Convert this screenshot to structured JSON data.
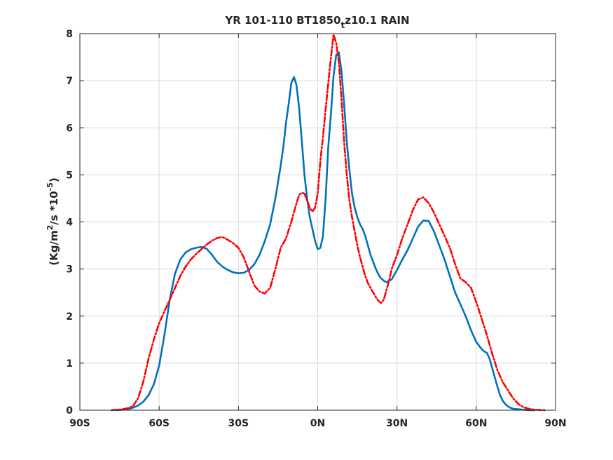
{
  "chart_data": {
    "type": "line",
    "title": "YR 101-110 BT1850",
    "title_subscript": "t",
    "title_suffix": "z10.1 RAIN",
    "ylabel": {
      "prefix": "(Kg/m",
      "sup1": "2",
      "mid": "/s   *10",
      "sup2": "-5",
      "suffix": ")"
    },
    "xlim": [
      -90,
      90
    ],
    "ylim": [
      0,
      8
    ],
    "grid": true,
    "x_ticks": [
      {
        "value": -90,
        "label": "90S"
      },
      {
        "value": -60,
        "label": "60S"
      },
      {
        "value": -30,
        "label": "30S"
      },
      {
        "value": 0,
        "label": "0N"
      },
      {
        "value": 30,
        "label": "30N"
      },
      {
        "value": 60,
        "label": "60N"
      },
      {
        "value": 90,
        "label": "90N"
      }
    ],
    "y_ticks": [
      {
        "value": 0,
        "label": "0"
      },
      {
        "value": 1,
        "label": "1"
      },
      {
        "value": 2,
        "label": "2"
      },
      {
        "value": 3,
        "label": "3"
      },
      {
        "value": 4,
        "label": "4"
      },
      {
        "value": 5,
        "label": "5"
      },
      {
        "value": 6,
        "label": "6"
      },
      {
        "value": 7,
        "label": "7"
      },
      {
        "value": 8,
        "label": "8"
      }
    ],
    "series": [
      {
        "color": "#0072bd",
        "style": "solid",
        "x": [
          -76,
          -72,
          -70,
          -68,
          -66,
          -64,
          -62,
          -60,
          -58,
          -56,
          -54,
          -52,
          -50,
          -48,
          -46,
          -44,
          -42,
          -40,
          -38,
          -36,
          -34,
          -32,
          -30,
          -28,
          -26,
          -24,
          -22,
          -20,
          -18,
          -16,
          -14,
          -13,
          -12,
          -11,
          -10,
          -9,
          -8,
          -7,
          -6,
          -5,
          -4,
          -3,
          -2,
          -1,
          0,
          1,
          2,
          3,
          4,
          5,
          6,
          7,
          8,
          9,
          10,
          11,
          12,
          13,
          14,
          15,
          16,
          17,
          18,
          19,
          20,
          21,
          22,
          23,
          24,
          25,
          26,
          28,
          30,
          32,
          34,
          36,
          38,
          40,
          42,
          44,
          46,
          48,
          50,
          52,
          54,
          56,
          58,
          60,
          62,
          63,
          64,
          65,
          66,
          67,
          68,
          69,
          70,
          71,
          72,
          73,
          74,
          76,
          78,
          80,
          82
        ],
        "y": [
          0.0,
          0.02,
          0.05,
          0.1,
          0.18,
          0.32,
          0.55,
          0.95,
          1.6,
          2.35,
          2.9,
          3.2,
          3.35,
          3.42,
          3.45,
          3.47,
          3.43,
          3.3,
          3.15,
          3.05,
          2.98,
          2.93,
          2.91,
          2.92,
          2.98,
          3.1,
          3.3,
          3.6,
          3.95,
          4.5,
          5.2,
          5.6,
          6.1,
          6.5,
          6.95,
          7.08,
          6.9,
          6.4,
          5.7,
          5.0,
          4.5,
          4.1,
          3.85,
          3.6,
          3.42,
          3.45,
          3.7,
          4.5,
          5.6,
          6.3,
          7.1,
          7.55,
          7.6,
          7.2,
          6.5,
          5.7,
          5.1,
          4.6,
          4.3,
          4.1,
          3.95,
          3.85,
          3.7,
          3.5,
          3.3,
          3.15,
          3.0,
          2.88,
          2.8,
          2.75,
          2.72,
          2.78,
          2.98,
          3.2,
          3.4,
          3.65,
          3.9,
          4.03,
          4.02,
          3.8,
          3.5,
          3.2,
          2.85,
          2.5,
          2.25,
          2.0,
          1.7,
          1.45,
          1.3,
          1.25,
          1.22,
          1.1,
          0.9,
          0.7,
          0.5,
          0.32,
          0.2,
          0.13,
          0.08,
          0.05,
          0.03,
          0.02,
          0.01,
          0.0,
          0.0
        ]
      },
      {
        "color": "#ff0000",
        "style": "dashed",
        "x": [
          -78,
          -76,
          -74,
          -72,
          -70,
          -68,
          -66,
          -64,
          -62,
          -60,
          -58,
          -56,
          -54,
          -52,
          -50,
          -48,
          -46,
          -44,
          -42,
          -40,
          -38,
          -36,
          -34,
          -32,
          -30,
          -28,
          -26,
          -24,
          -22,
          -20,
          -18,
          -16,
          -14,
          -12,
          -10,
          -8,
          -7,
          -6,
          -5,
          -4,
          -3,
          -2,
          -1,
          0,
          1,
          2,
          3,
          4,
          5,
          6,
          7,
          8,
          9,
          10,
          11,
          12,
          13,
          14,
          15,
          16,
          17,
          18,
          19,
          20,
          21,
          22,
          23,
          24,
          25,
          26,
          27,
          28,
          30,
          32,
          34,
          36,
          38,
          40,
          42,
          44,
          46,
          48,
          50,
          52,
          54,
          56,
          58,
          60,
          62,
          64,
          66,
          68,
          70,
          72,
          74,
          76,
          78,
          80,
          82,
          84,
          86
        ],
        "y": [
          0.0,
          0.01,
          0.02,
          0.04,
          0.08,
          0.25,
          0.6,
          1.1,
          1.5,
          1.85,
          2.1,
          2.35,
          2.6,
          2.85,
          3.05,
          3.2,
          3.32,
          3.42,
          3.52,
          3.6,
          3.66,
          3.68,
          3.62,
          3.55,
          3.45,
          3.25,
          2.95,
          2.65,
          2.52,
          2.48,
          2.6,
          3.0,
          3.45,
          3.65,
          4.0,
          4.4,
          4.58,
          4.62,
          4.6,
          4.45,
          4.3,
          4.22,
          4.3,
          4.6,
          5.3,
          5.8,
          6.4,
          6.95,
          7.5,
          7.98,
          7.8,
          7.4,
          6.6,
          5.7,
          5.0,
          4.45,
          4.1,
          3.8,
          3.5,
          3.25,
          3.05,
          2.85,
          2.7,
          2.6,
          2.5,
          2.4,
          2.32,
          2.28,
          2.35,
          2.55,
          2.75,
          3.0,
          3.3,
          3.65,
          3.95,
          4.25,
          4.48,
          4.52,
          4.4,
          4.2,
          3.95,
          3.7,
          3.45,
          3.1,
          2.8,
          2.72,
          2.6,
          2.3,
          1.95,
          1.6,
          1.2,
          0.85,
          0.6,
          0.42,
          0.25,
          0.13,
          0.06,
          0.03,
          0.01,
          0.005,
          0.0
        ]
      }
    ]
  }
}
